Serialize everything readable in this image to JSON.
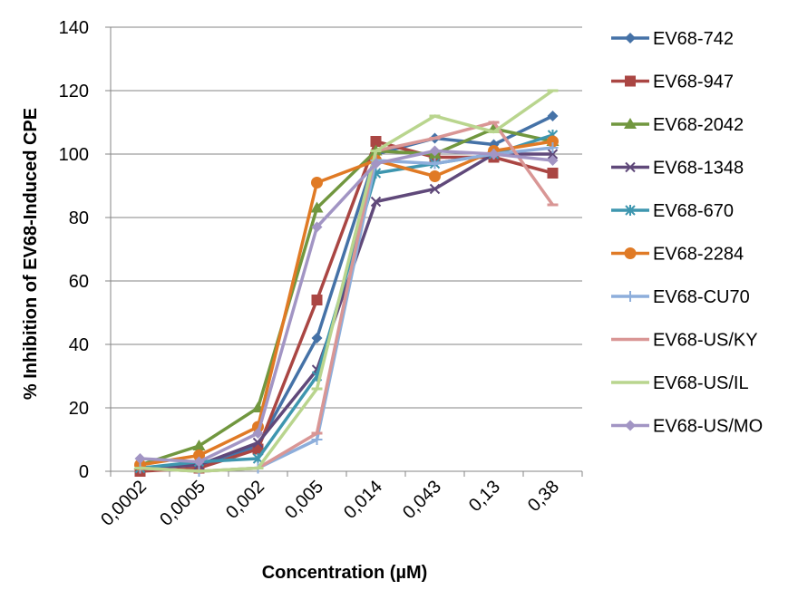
{
  "chart_data": {
    "type": "line",
    "title": "",
    "xlabel": "Concentration (µM)",
    "ylabel": "% Inhibition of EV68-Induced CPE",
    "categories": [
      "0,0002",
      "0,0005",
      "0,002",
      "0,005",
      "0,014",
      "0,043",
      "0,13",
      "0,38"
    ],
    "y_ticks": [
      "0",
      "20",
      "40",
      "60",
      "80",
      "100",
      "120",
      "140"
    ],
    "ylim": [
      0,
      140
    ],
    "grid": "horizontal",
    "legend_position": "right",
    "series": [
      {
        "name": "EV68-742",
        "color": "#4572A7",
        "marker": "diamond",
        "values": [
          1,
          2,
          8,
          42,
          100,
          105,
          103,
          112
        ]
      },
      {
        "name": "EV68-947",
        "color": "#AA4643",
        "marker": "square",
        "values": [
          0,
          1,
          7,
          54,
          104,
          99,
          99,
          94
        ]
      },
      {
        "name": "EV68-2042",
        "color": "#71973F",
        "marker": "triangle",
        "values": [
          2,
          8,
          20,
          83,
          101,
          100,
          108,
          104
        ]
      },
      {
        "name": "EV68-1348",
        "color": "#60497A",
        "marker": "x",
        "values": [
          1,
          2,
          9,
          32,
          85,
          89,
          100,
          100
        ]
      },
      {
        "name": "EV68-670",
        "color": "#3E96AF",
        "marker": "asterisk",
        "values": [
          1,
          3,
          4,
          30,
          94,
          97,
          100,
          106
        ]
      },
      {
        "name": "EV68-2284",
        "color": "#E07A25",
        "marker": "circle",
        "values": [
          2,
          5,
          14,
          91,
          98,
          93,
          101,
          104
        ]
      },
      {
        "name": "EV68-CU70",
        "color": "#8DAEDB",
        "marker": "plus",
        "values": [
          1,
          0,
          1,
          10,
          98,
          97,
          100,
          102
        ]
      },
      {
        "name": "EV68-US/KY",
        "color": "#D99695",
        "marker": "dash",
        "values": [
          1,
          0,
          1,
          12,
          101,
          105,
          110,
          84
        ]
      },
      {
        "name": "EV68-US/IL",
        "color": "#B9D58E",
        "marker": "dash",
        "values": [
          1,
          0,
          1,
          26,
          101,
          112,
          107,
          120
        ]
      },
      {
        "name": "EV68-US/MO",
        "color": "#A295C4",
        "marker": "diamond",
        "values": [
          4,
          3,
          12,
          77,
          97,
          101,
          100,
          98
        ]
      }
    ]
  }
}
